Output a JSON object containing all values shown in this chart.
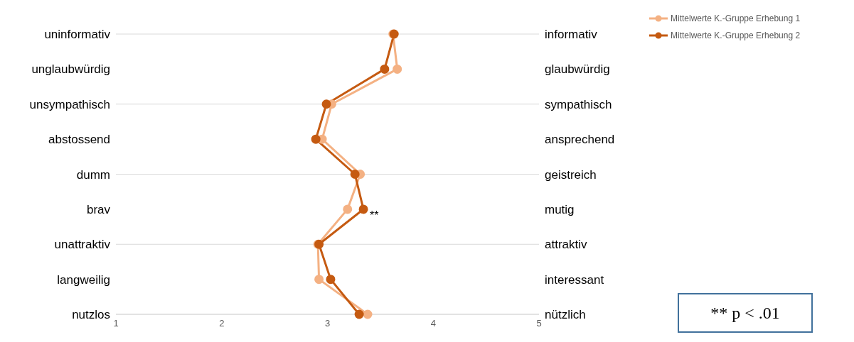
{
  "chart_data": {
    "type": "line",
    "orientation": "horizontal",
    "categories": [
      "uninformativ",
      "unglaubwürdig",
      "unsympathisch",
      "abstossend",
      "dumm",
      "brav",
      "unattraktiv",
      "langweilig",
      "nutzlos"
    ],
    "y2_categories": [
      "informativ",
      "glaubwürdig",
      "sympathisch",
      "ansprechend",
      "geistreich",
      "mutig",
      "attraktiv",
      "interessant",
      "nützlich"
    ],
    "series": [
      {
        "name": "Mittelwerte K.-Gruppe Erhebung 1",
        "color": "#f4b183",
        "values": [
          3.62,
          3.66,
          3.04,
          2.95,
          3.31,
          3.19,
          2.91,
          2.92,
          3.38
        ]
      },
      {
        "name": "Mittelwerte K.-Gruppe Erhebung 2",
        "color": "#c55a11",
        "values": [
          3.63,
          3.54,
          2.99,
          2.89,
          3.26,
          3.34,
          2.92,
          3.03,
          3.3
        ]
      }
    ],
    "xlim": [
      1,
      5
    ],
    "xticks": [
      1,
      2,
      3,
      4,
      5
    ],
    "grid": "y",
    "legend": "top right",
    "marker": "circle",
    "line_style": "solid",
    "annotations": [
      "**",
      "** p < .01"
    ]
  }
}
